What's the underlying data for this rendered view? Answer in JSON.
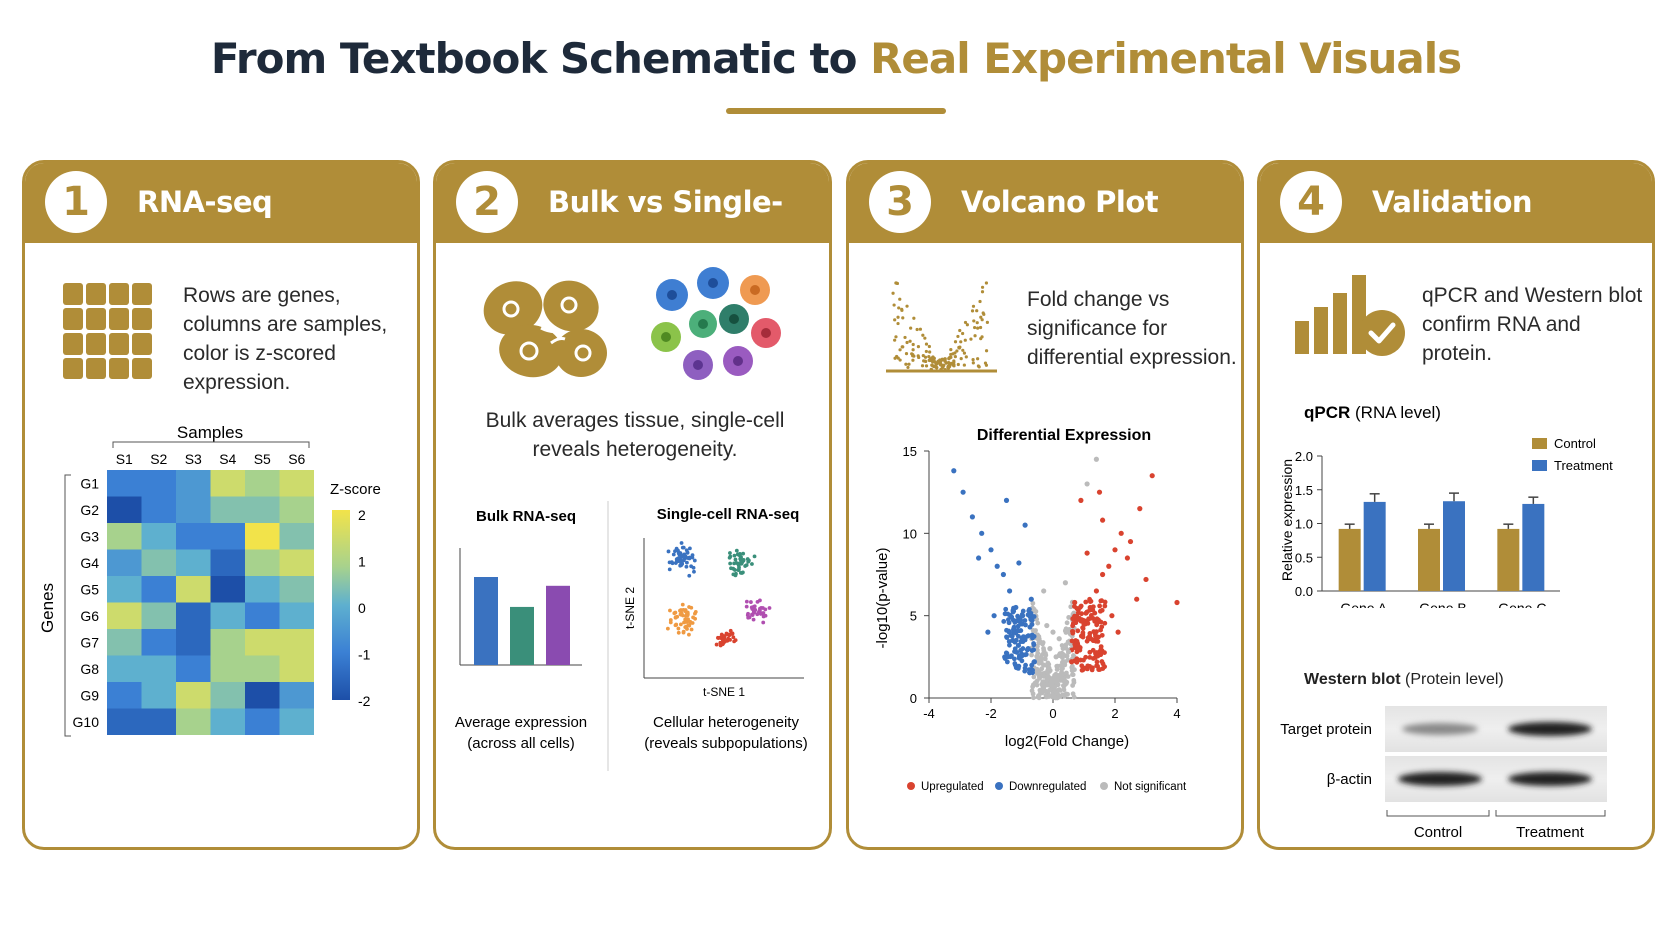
{
  "title": {
    "part1": "From  Textbook Schematic to ",
    "part2": "Real Experimental Visuals"
  },
  "colors": {
    "gold": "#b08d38",
    "navy": "#1e2a3a",
    "blue": "#3a72c0",
    "red": "#d9432f",
    "grey": "#bbbbbb"
  },
  "panels": [
    {
      "number": "1",
      "title": "RNA-seq Heatmap",
      "icon": "grid-icon",
      "description": "Rows are genes, columns are samples, color is z-scored expression."
    },
    {
      "number": "2",
      "title": "Bulk vs Single-Cell",
      "icon": "cells-icon",
      "description": "Bulk averages tissue, single-cell reveals heterogeneity."
    },
    {
      "number": "3",
      "title": "Volcano Plot",
      "icon": "volcano-icon",
      "description": "Fold change vs significance for differential expression."
    },
    {
      "number": "4",
      "title": "Validation",
      "icon": "bar-check-icon",
      "description": "qPCR and Western blot confirm RNA and protein."
    }
  ],
  "heatmap": {
    "xlabel": "Samples",
    "ylabel": "Genes",
    "samples": [
      "S1",
      "S2",
      "S3",
      "S4",
      "S5",
      "S6"
    ],
    "genes": [
      "G1",
      "G2",
      "G3",
      "G4",
      "G5",
      "G6",
      "G7",
      "G8",
      "G9",
      "G10"
    ],
    "colorbar_title": "Z-score",
    "colorbar_ticks": [
      "2",
      "1",
      "0",
      "-1",
      "-2"
    ],
    "values": [
      [
        -1.0,
        -1.0,
        -0.5,
        1.5,
        1.0,
        1.5
      ],
      [
        -2.0,
        -1.0,
        -0.5,
        0.5,
        0.5,
        1.0
      ],
      [
        1.0,
        0.0,
        -1.0,
        -1.0,
        2.0,
        0.5
      ],
      [
        -0.5,
        0.5,
        0.0,
        -1.5,
        1.0,
        1.5
      ],
      [
        0.0,
        -1.0,
        1.5,
        -2.0,
        0.0,
        0.5
      ],
      [
        1.5,
        0.5,
        -1.5,
        0.0,
        -1.0,
        0.0
      ],
      [
        0.5,
        -1.0,
        -1.5,
        1.0,
        1.5,
        1.5
      ],
      [
        0.0,
        0.0,
        -1.0,
        1.0,
        1.0,
        1.5
      ],
      [
        -1.0,
        0.0,
        1.5,
        0.5,
        -2.0,
        -0.5
      ],
      [
        -1.5,
        -1.5,
        1.0,
        0.0,
        -1.0,
        0.0
      ]
    ]
  },
  "bulk": {
    "bulk_title": "Bulk RNA-seq",
    "bulk_values": [
      1.0,
      0.66,
      0.9
    ],
    "bulk_caption_1": "Average expression",
    "bulk_caption_2": "(across all cells)",
    "sc_title": "Single-cell RNA-seq",
    "sc_xlabel": "t-SNE 1",
    "sc_ylabel": "t-SNE 2",
    "sc_caption_1": "Cellular heterogeneity",
    "sc_caption_2": "(reveals subpopulations)"
  },
  "chart_data": [
    {
      "type": "scatter",
      "title": "Differential Expression",
      "xlabel": "log2(Fold Change)",
      "ylabel": "-log10(p-value)",
      "xlim": [
        -4,
        4
      ],
      "ylim": [
        0,
        15
      ],
      "xticks": [
        "-4",
        "-2",
        "0",
        "2",
        "4"
      ],
      "yticks": [
        "0",
        "5",
        "10",
        "15"
      ],
      "legend": "bottom",
      "series": [
        {
          "name": "Upregulated",
          "color": "#d9432f",
          "x": [
            0.6,
            0.8,
            1.0,
            1.2,
            1.4,
            1.6,
            1.8,
            2.0,
            2.2,
            2.5,
            2.8,
            3.2,
            0.9,
            1.5,
            2.4,
            1.3,
            1.9,
            2.7,
            1.1,
            3.0,
            0.7,
            1.6,
            2.1,
            4.0
          ],
          "y": [
            2.2,
            3.0,
            4.5,
            5.5,
            6.5,
            7.5,
            8.0,
            9.0,
            10.0,
            9.5,
            11.5,
            13.5,
            12.0,
            12.5,
            8.5,
            3.5,
            5.0,
            6.0,
            8.8,
            7.2,
            5.8,
            10.8,
            4.0,
            5.8
          ]
        },
        {
          "name": "Downregulated",
          "color": "#3a72c0",
          "x": [
            -0.6,
            -0.8,
            -1.0,
            -1.2,
            -1.4,
            -1.6,
            -1.8,
            -2.0,
            -2.3,
            -2.6,
            -2.9,
            -3.2,
            -0.9,
            -1.5,
            -2.4,
            -1.3,
            -1.9,
            -0.7,
            -1.1,
            -2.1
          ],
          "y": [
            2.2,
            3.0,
            4.5,
            5.5,
            6.5,
            7.5,
            8.0,
            9.0,
            10.0,
            11.0,
            12.5,
            13.8,
            10.5,
            12.0,
            8.5,
            3.5,
            5.0,
            6.0,
            8.2,
            4.0
          ]
        },
        {
          "name": "Not significant",
          "color": "#bbbbbb",
          "x": [
            -0.4,
            -0.2,
            0.0,
            0.2,
            0.4,
            -0.3,
            0.1,
            0.3,
            -0.1,
            0.5,
            -0.5,
            0.0,
            0.2,
            -0.2,
            1.4,
            -0.3,
            0.4,
            1.1
          ],
          "y": [
            0.3,
            0.8,
            1.2,
            0.5,
            1.0,
            2.0,
            2.5,
            1.8,
            3.0,
            2.8,
            1.5,
            4.0,
            3.6,
            4.4,
            14.5,
            6.5,
            7.0,
            13.0
          ]
        }
      ]
    },
    {
      "type": "bar",
      "title": "qPCR (RNA level)",
      "ylabel": "Relative expression",
      "categories": [
        "Gene A",
        "Gene B",
        "Gene C"
      ],
      "ylim": [
        0,
        2.0
      ],
      "yticks": [
        "0.0",
        "0.5",
        "1.0",
        "1.5",
        "2.0"
      ],
      "legend": "top-right",
      "series": [
        {
          "name": "Control",
          "color": "#b08d38",
          "values": [
            0.92,
            0.92,
            0.92
          ],
          "errors": [
            0.07,
            0.07,
            0.07
          ]
        },
        {
          "name": "Treatment",
          "color": "#3a72c0",
          "values": [
            1.32,
            1.33,
            1.29
          ],
          "errors": [
            0.12,
            0.12,
            0.1
          ]
        }
      ]
    }
  ],
  "western": {
    "title_bold": "Western blot",
    "title_rest": " (Protein level)",
    "rows": [
      "Target protein",
      "β-actin"
    ],
    "groups": [
      "Control",
      "Treatment"
    ]
  }
}
